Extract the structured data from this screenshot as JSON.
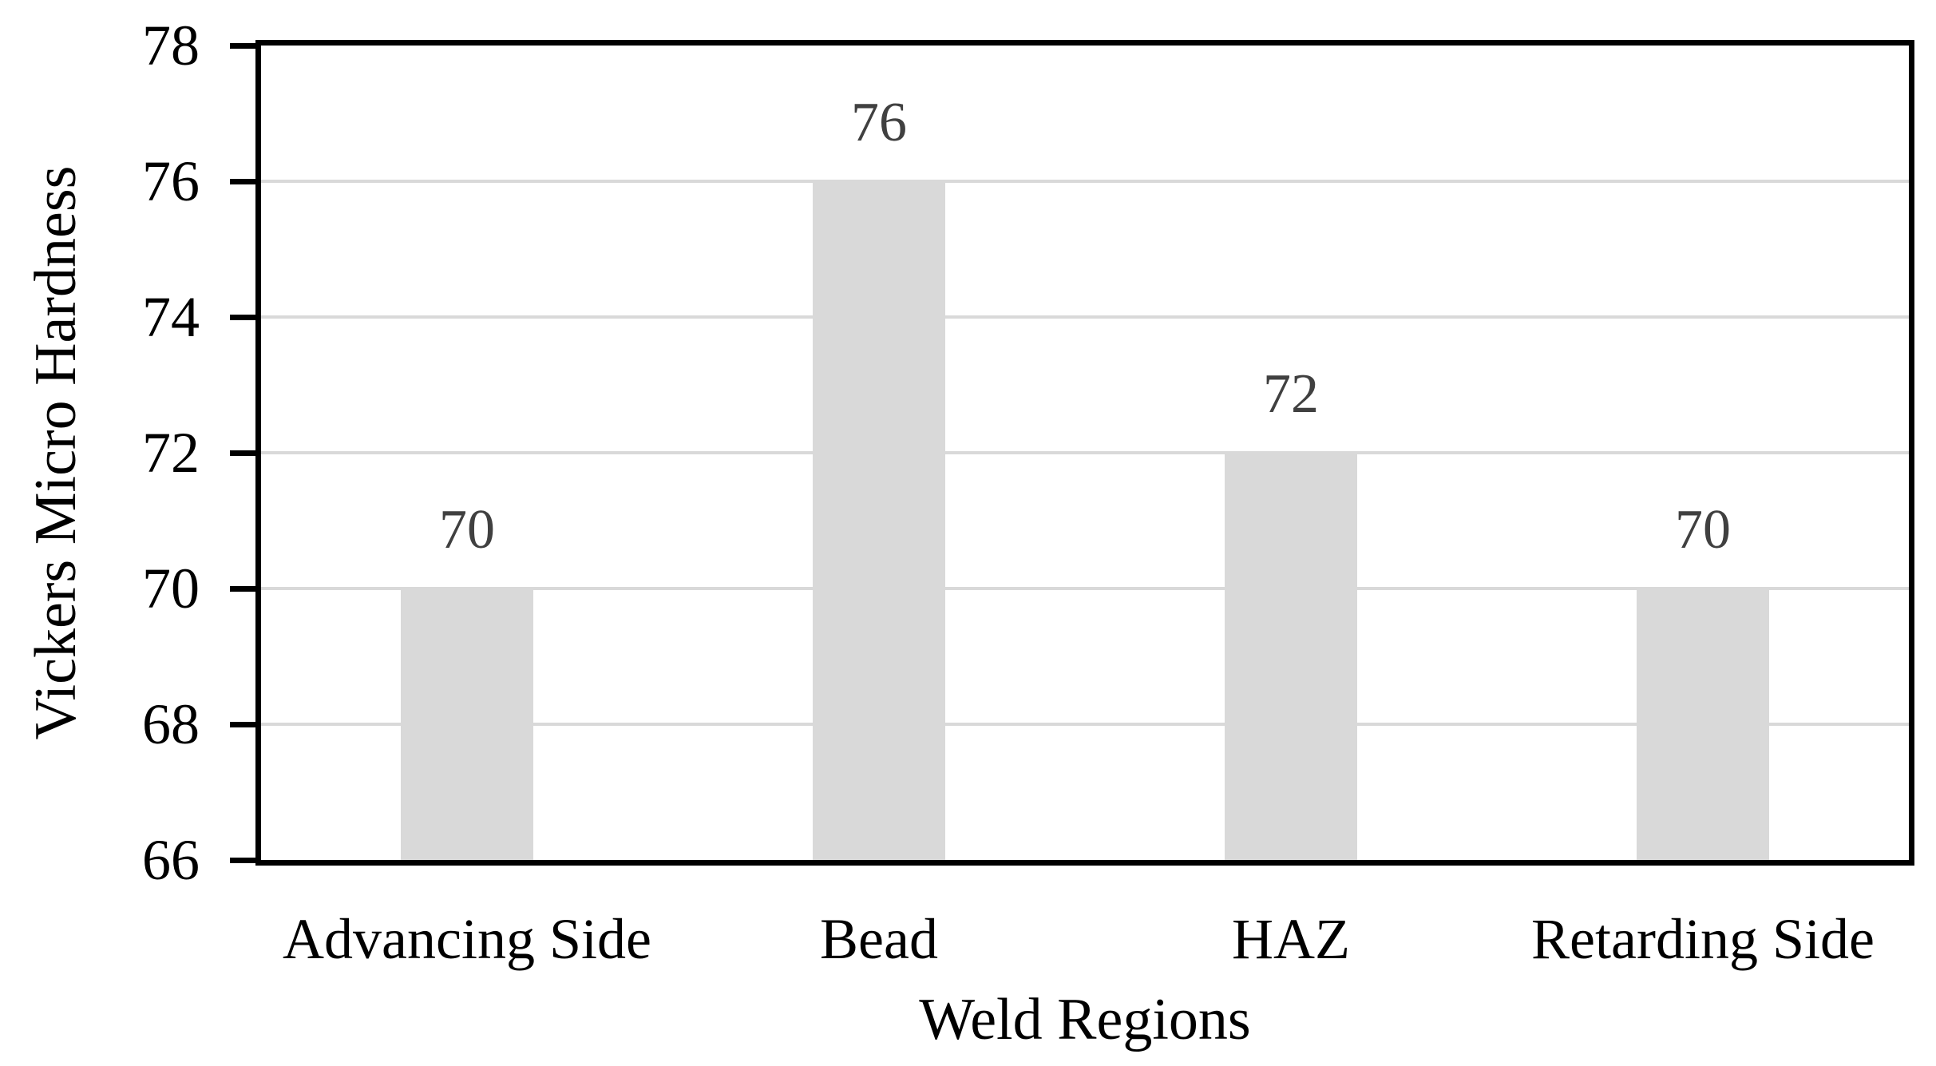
{
  "chart_data": {
    "type": "bar",
    "title": "",
    "xlabel": "Weld Regions",
    "ylabel": "Vickers Micro Hardness",
    "categories": [
      "Advancing Side",
      "Bead",
      "HAZ",
      "Retarding Side"
    ],
    "values": [
      70,
      76,
      72,
      70
    ],
    "data_labels": [
      "70",
      "76",
      "72",
      "70"
    ],
    "ylim": [
      66,
      78
    ],
    "yticks": [
      66,
      68,
      70,
      72,
      74,
      76,
      78
    ],
    "ytick_step": 2,
    "grid": "horizontal-gridlines-on",
    "legend": "none",
    "colors": {
      "bar_fill": "#d9d9d9",
      "gridline": "#d9d9d9",
      "axis_line": "#000000",
      "tick_label": "#000000",
      "axis_title": "#000000",
      "data_label": "#404040",
      "background": "#ffffff"
    }
  }
}
